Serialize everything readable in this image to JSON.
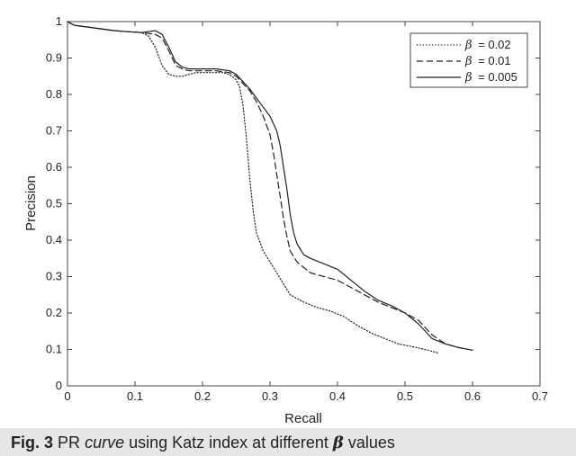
{
  "caption": {
    "label": "Fig. 3",
    "text_before": "PR",
    "text_italic": "curve",
    "text_middle": "using Katz index at different",
    "symbol": "β",
    "text_after": "values"
  },
  "chart_data": {
    "type": "line",
    "title": "",
    "xlabel": "Recall",
    "ylabel": "Precision",
    "xlim": [
      0,
      0.7
    ],
    "ylim": [
      0,
      1
    ],
    "x_ticks": [
      0,
      0.1,
      0.2,
      0.3,
      0.4,
      0.5,
      0.6,
      0.7
    ],
    "x_tick_labels": [
      "0",
      "0.1",
      "0.2",
      "0.3",
      "0.4",
      "0.5",
      "0.6",
      "0.7"
    ],
    "y_ticks": [
      0,
      0.1,
      0.2,
      0.3,
      0.4,
      0.5,
      0.6,
      0.7,
      0.8,
      0.9,
      1
    ],
    "y_tick_labels": [
      "0",
      "0.1",
      "0.2",
      "0.3",
      "0.4",
      "0.5",
      "0.6",
      "0.7",
      "0.8",
      "0.9",
      "1"
    ],
    "grid": false,
    "legend_position": "top-right",
    "series": [
      {
        "name": "β = 0.02",
        "legend_symbol": "β",
        "legend_value": "= 0.02",
        "style": "dotted",
        "color": "#222222",
        "x": [
          0.0,
          0.01,
          0.03,
          0.05,
          0.07,
          0.09,
          0.11,
          0.12,
          0.13,
          0.14,
          0.15,
          0.16,
          0.17,
          0.18,
          0.19,
          0.2,
          0.21,
          0.22,
          0.23,
          0.24,
          0.25,
          0.255,
          0.26,
          0.265,
          0.27,
          0.275,
          0.28,
          0.29,
          0.3,
          0.31,
          0.32,
          0.33,
          0.35,
          0.37,
          0.39,
          0.41,
          0.43,
          0.45,
          0.47,
          0.49,
          0.51,
          0.53,
          0.55
        ],
        "y": [
          1.0,
          0.99,
          0.985,
          0.98,
          0.975,
          0.972,
          0.97,
          0.96,
          0.93,
          0.88,
          0.855,
          0.85,
          0.85,
          0.855,
          0.86,
          0.86,
          0.86,
          0.86,
          0.86,
          0.855,
          0.84,
          0.82,
          0.77,
          0.68,
          0.57,
          0.48,
          0.42,
          0.37,
          0.34,
          0.31,
          0.28,
          0.25,
          0.23,
          0.215,
          0.205,
          0.19,
          0.165,
          0.145,
          0.13,
          0.115,
          0.108,
          0.1,
          0.09
        ]
      },
      {
        "name": "β = 0.01",
        "legend_symbol": "β",
        "legend_value": "= 0.01",
        "style": "dashed",
        "color": "#222222",
        "x": [
          0.0,
          0.01,
          0.03,
          0.05,
          0.07,
          0.09,
          0.11,
          0.13,
          0.14,
          0.15,
          0.16,
          0.17,
          0.18,
          0.2,
          0.22,
          0.24,
          0.25,
          0.26,
          0.27,
          0.28,
          0.29,
          0.3,
          0.305,
          0.31,
          0.315,
          0.32,
          0.325,
          0.33,
          0.34,
          0.35,
          0.36,
          0.38,
          0.4,
          0.42,
          0.44,
          0.46,
          0.48,
          0.5,
          0.52,
          0.54,
          0.56,
          0.58,
          0.6
        ],
        "y": [
          1.0,
          0.99,
          0.985,
          0.98,
          0.975,
          0.972,
          0.97,
          0.965,
          0.955,
          0.92,
          0.88,
          0.87,
          0.865,
          0.865,
          0.865,
          0.86,
          0.85,
          0.83,
          0.81,
          0.78,
          0.74,
          0.69,
          0.64,
          0.58,
          0.52,
          0.46,
          0.41,
          0.37,
          0.34,
          0.325,
          0.31,
          0.3,
          0.29,
          0.27,
          0.25,
          0.23,
          0.215,
          0.2,
          0.18,
          0.14,
          0.115,
          0.105,
          0.098
        ]
      },
      {
        "name": "β = 0.005",
        "legend_symbol": "β",
        "legend_value": "= 0.005",
        "style": "solid",
        "color": "#222222",
        "x": [
          0.0,
          0.01,
          0.03,
          0.05,
          0.07,
          0.09,
          0.11,
          0.13,
          0.14,
          0.15,
          0.16,
          0.17,
          0.18,
          0.2,
          0.22,
          0.24,
          0.25,
          0.26,
          0.27,
          0.28,
          0.29,
          0.3,
          0.31,
          0.315,
          0.32,
          0.325,
          0.33,
          0.335,
          0.34,
          0.35,
          0.36,
          0.38,
          0.4,
          0.42,
          0.44,
          0.46,
          0.48,
          0.5,
          0.52,
          0.54,
          0.56,
          0.58,
          0.6
        ],
        "y": [
          1.0,
          0.99,
          0.985,
          0.98,
          0.975,
          0.972,
          0.97,
          0.975,
          0.965,
          0.93,
          0.89,
          0.875,
          0.87,
          0.87,
          0.87,
          0.865,
          0.855,
          0.835,
          0.815,
          0.79,
          0.765,
          0.74,
          0.7,
          0.66,
          0.6,
          0.54,
          0.47,
          0.42,
          0.39,
          0.36,
          0.35,
          0.335,
          0.32,
          0.29,
          0.26,
          0.235,
          0.22,
          0.2,
          0.17,
          0.13,
          0.115,
          0.105,
          0.098
        ]
      }
    ]
  }
}
